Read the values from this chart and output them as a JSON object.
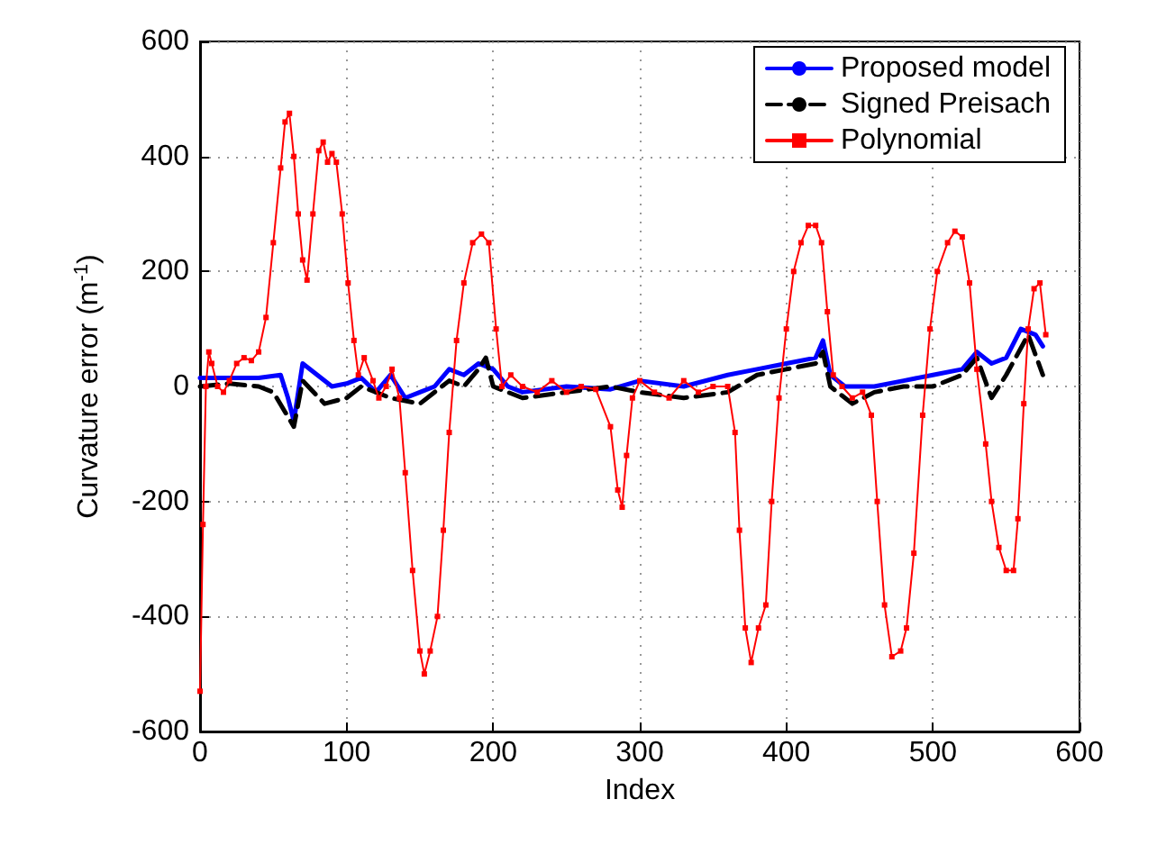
{
  "chart_data": {
    "type": "line",
    "xlabel": "Index",
    "ylabel": "Curvature error (m$^{-1}$)",
    "xlim": [
      0,
      600
    ],
    "xticks": [
      0,
      100,
      200,
      300,
      400,
      500,
      600
    ],
    "ylim": [
      -600,
      600
    ],
    "yticks": [
      -600,
      -400,
      -200,
      0,
      200,
      400,
      600
    ],
    "grid": true,
    "legend": "top right",
    "series": [
      {
        "name": "Proposed model",
        "color": "#0000ff",
        "line_style": "solid",
        "marker": "none",
        "x": [
          0,
          20,
          40,
          55,
          60,
          64,
          70,
          80,
          90,
          100,
          110,
          120,
          130,
          140,
          150,
          160,
          170,
          180,
          190,
          200,
          210,
          220,
          250,
          280,
          300,
          330,
          360,
          380,
          400,
          420,
          425,
          430,
          440,
          460,
          480,
          500,
          520,
          530,
          540,
          550,
          560,
          570,
          575
        ],
        "values": [
          15,
          15,
          15,
          20,
          -20,
          -60,
          40,
          20,
          0,
          5,
          15,
          -10,
          20,
          -20,
          -10,
          0,
          30,
          20,
          40,
          30,
          0,
          -10,
          0,
          -5,
          10,
          0,
          20,
          30,
          40,
          50,
          80,
          20,
          0,
          0,
          10,
          20,
          30,
          60,
          40,
          50,
          100,
          90,
          70
        ]
      },
      {
        "name": "Signed Preisach",
        "color": "#000000",
        "line_style": "dashed",
        "marker": "none",
        "x": [
          0,
          20,
          40,
          50,
          64,
          70,
          85,
          100,
          110,
          130,
          150,
          170,
          180,
          190,
          195,
          200,
          220,
          250,
          280,
          300,
          330,
          360,
          380,
          400,
          420,
          425,
          430,
          445,
          460,
          480,
          500,
          520,
          530,
          540,
          550,
          565,
          575
        ],
        "values": [
          0,
          5,
          0,
          -10,
          -70,
          10,
          -30,
          -20,
          0,
          -20,
          -30,
          10,
          0,
          30,
          50,
          0,
          -20,
          -10,
          0,
          -10,
          -20,
          -10,
          20,
          30,
          40,
          60,
          0,
          -30,
          -10,
          0,
          0,
          20,
          50,
          -20,
          20,
          90,
          20
        ]
      },
      {
        "name": "Polynomial",
        "color": "#ff0000",
        "line_style": "solid",
        "marker": "square",
        "x": [
          0,
          2,
          4,
          6,
          8,
          12,
          16,
          20,
          25,
          30,
          35,
          40,
          45,
          50,
          55,
          58,
          61,
          64,
          67,
          70,
          73,
          77,
          81,
          84,
          87,
          90,
          93,
          97,
          101,
          105,
          108,
          112,
          118,
          122,
          127,
          131,
          136,
          140,
          145,
          150,
          153,
          157,
          162,
          166,
          170,
          175,
          180,
          186,
          192,
          197,
          202,
          206,
          212,
          220,
          230,
          240,
          250,
          260,
          270,
          280,
          285,
          288,
          291,
          295,
          300,
          310,
          320,
          330,
          340,
          350,
          360,
          365,
          368,
          372,
          376,
          381,
          386,
          390,
          395,
          400,
          405,
          410,
          415,
          420,
          424,
          428,
          432,
          438,
          445,
          452,
          458,
          462,
          467,
          472,
          478,
          482,
          487,
          493,
          498,
          503,
          510,
          515,
          520,
          525,
          530,
          536,
          540,
          545,
          550,
          555,
          558,
          562,
          565,
          569,
          573,
          577
        ],
        "values": [
          -530,
          -240,
          0,
          60,
          40,
          0,
          -10,
          10,
          40,
          50,
          45,
          60,
          120,
          250,
          380,
          460,
          475,
          400,
          300,
          220,
          185,
          300,
          410,
          425,
          390,
          405,
          390,
          300,
          180,
          80,
          20,
          50,
          10,
          -20,
          0,
          30,
          -20,
          -150,
          -320,
          -460,
          -500,
          -460,
          -400,
          -250,
          -80,
          80,
          180,
          250,
          265,
          250,
          100,
          0,
          20,
          0,
          -10,
          10,
          -10,
          0,
          -5,
          -70,
          -180,
          -210,
          -120,
          -20,
          10,
          -10,
          -20,
          10,
          -10,
          0,
          0,
          -80,
          -250,
          -420,
          -480,
          -420,
          -380,
          -200,
          -20,
          100,
          200,
          250,
          280,
          280,
          250,
          130,
          20,
          0,
          -20,
          -10,
          -50,
          -200,
          -380,
          -470,
          -460,
          -420,
          -290,
          -50,
          100,
          200,
          250,
          270,
          260,
          180,
          30,
          -100,
          -200,
          -280,
          -320,
          -320,
          -230,
          -30,
          100,
          170,
          180,
          90
        ]
      }
    ]
  }
}
